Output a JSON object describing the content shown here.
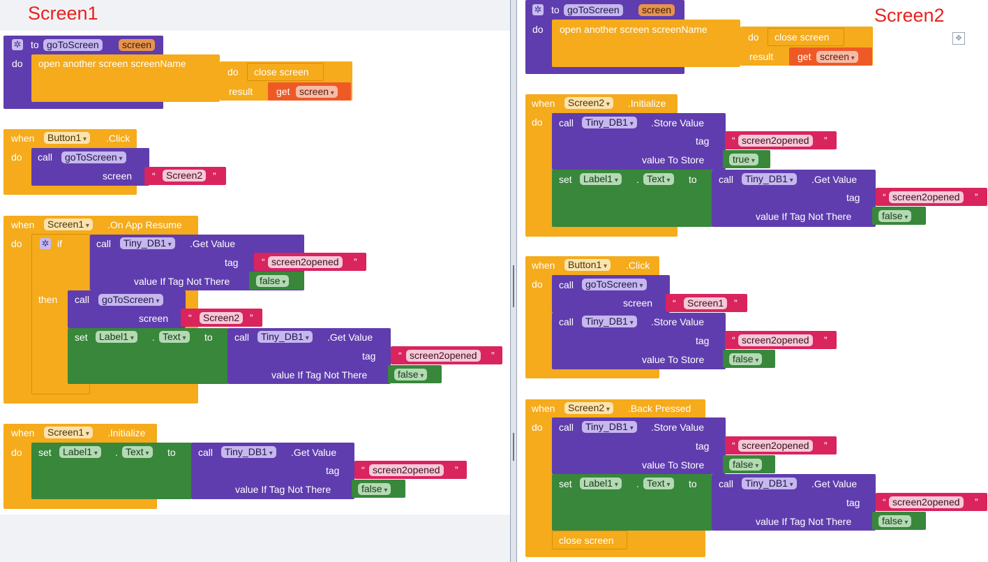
{
  "screen1": {
    "title": "Screen1",
    "proc": {
      "to": "to",
      "name": "goToScreen",
      "param": "screen",
      "do": "do",
      "open": "open another screen  screenName",
      "do2": "do",
      "close": "close screen",
      "result": "result",
      "get": "get",
      "var": "screen"
    },
    "btn": {
      "when": "when",
      "comp": "Button1",
      "event": ".Click",
      "do": "do",
      "call": "call",
      "proc": "goToScreen",
      "screen": "screen",
      "q1": "“",
      "value": "Screen2",
      "q2": "”"
    },
    "resume": {
      "when": "when",
      "comp": "Screen1",
      "event": ".On App Resume",
      "do": "do",
      "if": "if",
      "then": "then",
      "call": "call",
      "db": "Tiny_DB1",
      "getvalue": ".Get Value",
      "tag": "tag",
      "q1": "“",
      "tagval": "screen2opened",
      "q2": "”",
      "ifnot": "value If Tag Not There",
      "false": "false",
      "call2": "call",
      "proc": "goToScreen",
      "screen": "screen",
      "scrval": "Screen2",
      "set": "set",
      "label": "Label1",
      "dot": ".",
      "text": "Text",
      "to": "to",
      "call3": "call",
      "db2": "Tiny_DB1",
      "getvalue2": ".Get Value",
      "tag2": "tag",
      "tagval2": "screen2opened",
      "ifnot2": "value If Tag Not There",
      "false2": "false"
    },
    "init": {
      "when": "when",
      "comp": "Screen1",
      "event": ".Initialize",
      "do": "do",
      "set": "set",
      "label": "Label1",
      "dot": ".",
      "text": "Text",
      "to": "to",
      "call": "call",
      "db": "Tiny_DB1",
      "getvalue": ".Get Value",
      "tag": "tag",
      "q1": "“",
      "tagval": "screen2opened",
      "q2": "”",
      "ifnot": "value If Tag Not There",
      "false": "false"
    }
  },
  "screen2": {
    "title": "Screen2",
    "proc": {
      "to": "to",
      "name": "goToScreen",
      "param": "screen",
      "do": "do",
      "open": "open another screen  screenName",
      "do2": "do",
      "close": "close screen",
      "result": "result",
      "get": "get",
      "var": "screen"
    },
    "init": {
      "when": "when",
      "comp": "Screen2",
      "event": ".Initialize",
      "do": "do",
      "call": "call",
      "db": "Tiny_DB1",
      "store": ".Store Value",
      "tag": "tag",
      "q1": "“",
      "tagval": "screen2opened",
      "q2": "”",
      "vts": "value To Store",
      "true": "true",
      "set": "set",
      "label": "Label1",
      "dot": ".",
      "text": "Text",
      "to": "to",
      "call2": "call",
      "db2": "Tiny_DB1",
      "getvalue": ".Get Value",
      "tag2": "tag",
      "tagval2": "screen2opened",
      "ifnot": "value If Tag Not There",
      "false": "false"
    },
    "btn": {
      "when": "when",
      "comp": "Button1",
      "event": ".Click",
      "do": "do",
      "call": "call",
      "proc": "goToScreen",
      "screen": "screen",
      "q1": "“",
      "value": "Screen1",
      "q2": "”",
      "call2": "call",
      "db": "Tiny_DB1",
      "store": ".Store Value",
      "tag": "tag",
      "tagval": "screen2opened",
      "vts": "value To Store",
      "false": "false"
    },
    "back": {
      "when": "when",
      "comp": "Screen2",
      "event": ".Back Pressed",
      "do": "do",
      "call": "call",
      "db": "Tiny_DB1",
      "store": ".Store Value",
      "tag": "tag",
      "q1": "“",
      "tagval": "screen2opened",
      "q2": "”",
      "vts": "value To Store",
      "false": "false",
      "set": "set",
      "label": "Label1",
      "dot": ".",
      "text": "Text",
      "to": "to",
      "call2": "call",
      "db2": "Tiny_DB1",
      "getvalue": ".Get Value",
      "tag2": "tag",
      "tagval2": "screen2opened",
      "ifnot": "value If Tag Not There",
      "false2": "false",
      "close": "close screen"
    }
  },
  "icons": {
    "gear": "gear-icon",
    "workspace_nav": "crosshair-icon"
  },
  "colors": {
    "event": "#f5ab1b",
    "procedure": "#5f3dae",
    "component": "#5f3dae",
    "setter": "#38873b",
    "text": "#d9245e",
    "variable": "#ee5a26",
    "title": "#e8221e"
  }
}
